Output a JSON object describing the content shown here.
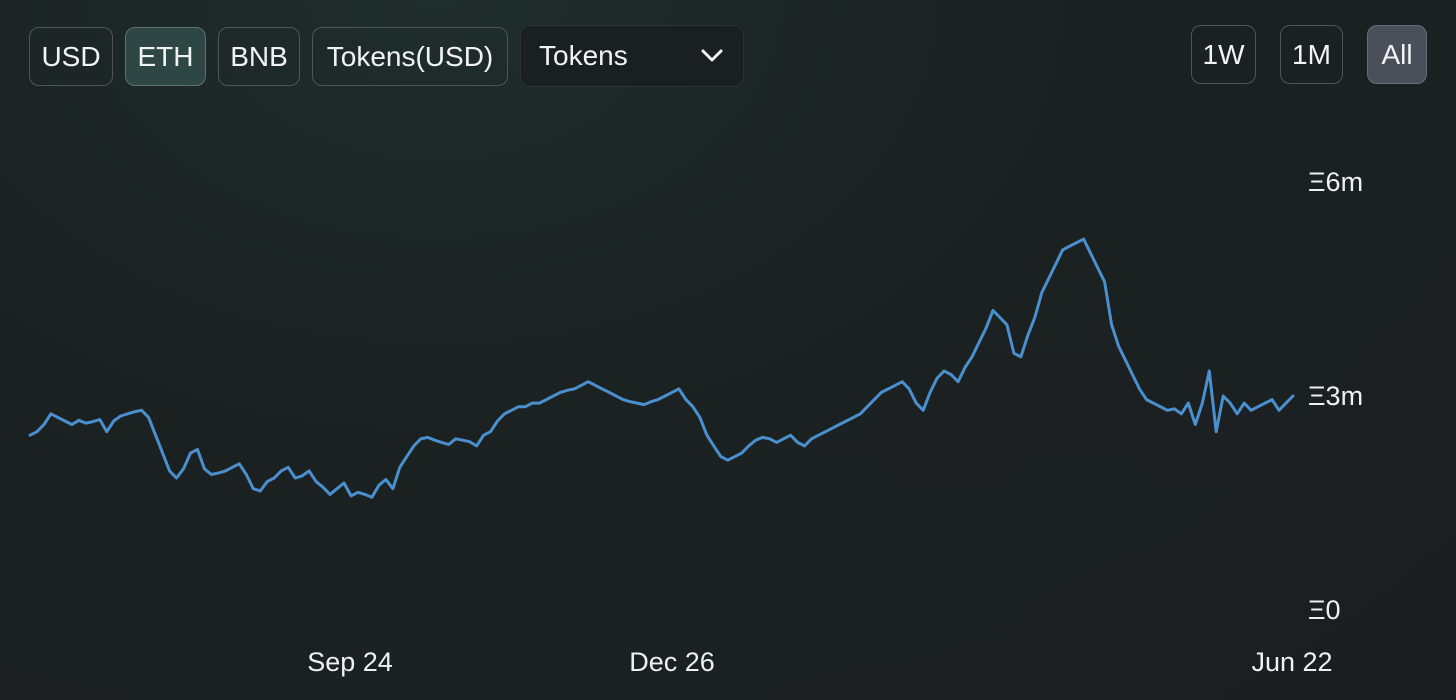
{
  "toolbar": {
    "currency_buttons": [
      {
        "label": "USD",
        "active": false
      },
      {
        "label": "ETH",
        "active": true
      },
      {
        "label": "BNB",
        "active": false
      },
      {
        "label": "Tokens(USD)",
        "active": false
      }
    ],
    "dropdown": {
      "selected": "Tokens",
      "icon": "chevron-down-icon"
    },
    "range_buttons": [
      {
        "label": "1W",
        "active": false
      },
      {
        "label": "1M",
        "active": false
      },
      {
        "label": "All",
        "active": true
      }
    ]
  },
  "colors": {
    "line": "#4a8fce",
    "active_eth": "#2f4744",
    "active_all": "#4a4f59"
  },
  "chart_data": {
    "type": "area",
    "series": [
      {
        "values": [
          2.45,
          2.5,
          2.6,
          2.75,
          2.7,
          2.65,
          2.6,
          2.66,
          2.62,
          2.64,
          2.67,
          2.5,
          2.65,
          2.72,
          2.75,
          2.78,
          2.8,
          2.7,
          2.45,
          2.2,
          1.95,
          1.85,
          1.98,
          2.2,
          2.25,
          1.98,
          1.9,
          1.92,
          1.95,
          2.0,
          2.05,
          1.9,
          1.7,
          1.67,
          1.8,
          1.85,
          1.95,
          2.0,
          1.85,
          1.88,
          1.95,
          1.8,
          1.72,
          1.62,
          1.7,
          1.78,
          1.6,
          1.65,
          1.62,
          1.58,
          1.75,
          1.83,
          1.7,
          2.0,
          2.15,
          2.3,
          2.4,
          2.42,
          2.38,
          2.35,
          2.32,
          2.4,
          2.38,
          2.36,
          2.3,
          2.45,
          2.5,
          2.65,
          2.75,
          2.8,
          2.85,
          2.85,
          2.9,
          2.9,
          2.95,
          3.0,
          3.05,
          3.08,
          3.1,
          3.15,
          3.2,
          3.15,
          3.1,
          3.05,
          3.0,
          2.95,
          2.92,
          2.9,
          2.88,
          2.92,
          2.95,
          3.0,
          3.05,
          3.1,
          2.95,
          2.85,
          2.7,
          2.45,
          2.3,
          2.15,
          2.1,
          2.15,
          2.2,
          2.3,
          2.38,
          2.42,
          2.4,
          2.35,
          2.4,
          2.45,
          2.35,
          2.3,
          2.4,
          2.45,
          2.5,
          2.55,
          2.6,
          2.65,
          2.7,
          2.75,
          2.85,
          2.95,
          3.05,
          3.1,
          3.15,
          3.2,
          3.1,
          2.9,
          2.8,
          3.05,
          3.25,
          3.35,
          3.3,
          3.2,
          3.4,
          3.55,
          3.75,
          3.95,
          4.2,
          4.1,
          4.0,
          3.6,
          3.55,
          3.85,
          4.1,
          4.45,
          4.65,
          4.85,
          5.05,
          5.1,
          5.15,
          5.2,
          5.0,
          4.8,
          4.6,
          4.0,
          3.7,
          3.5,
          3.3,
          3.1,
          2.95,
          2.9,
          2.85,
          2.8,
          2.82,
          2.75,
          2.9,
          2.6,
          2.9,
          3.35,
          2.5,
          3.0,
          2.9,
          2.75,
          2.9,
          2.8,
          2.85,
          2.9,
          2.95,
          2.8,
          2.9,
          3.0
        ]
      }
    ],
    "x_ticks": [
      "Sep 24",
      "Dec 26",
      "Jun 22"
    ],
    "y_ticks": [
      "Ξ0",
      "Ξ3m",
      "Ξ6m"
    ],
    "ylim": [
      0,
      6
    ],
    "grid": false
  }
}
